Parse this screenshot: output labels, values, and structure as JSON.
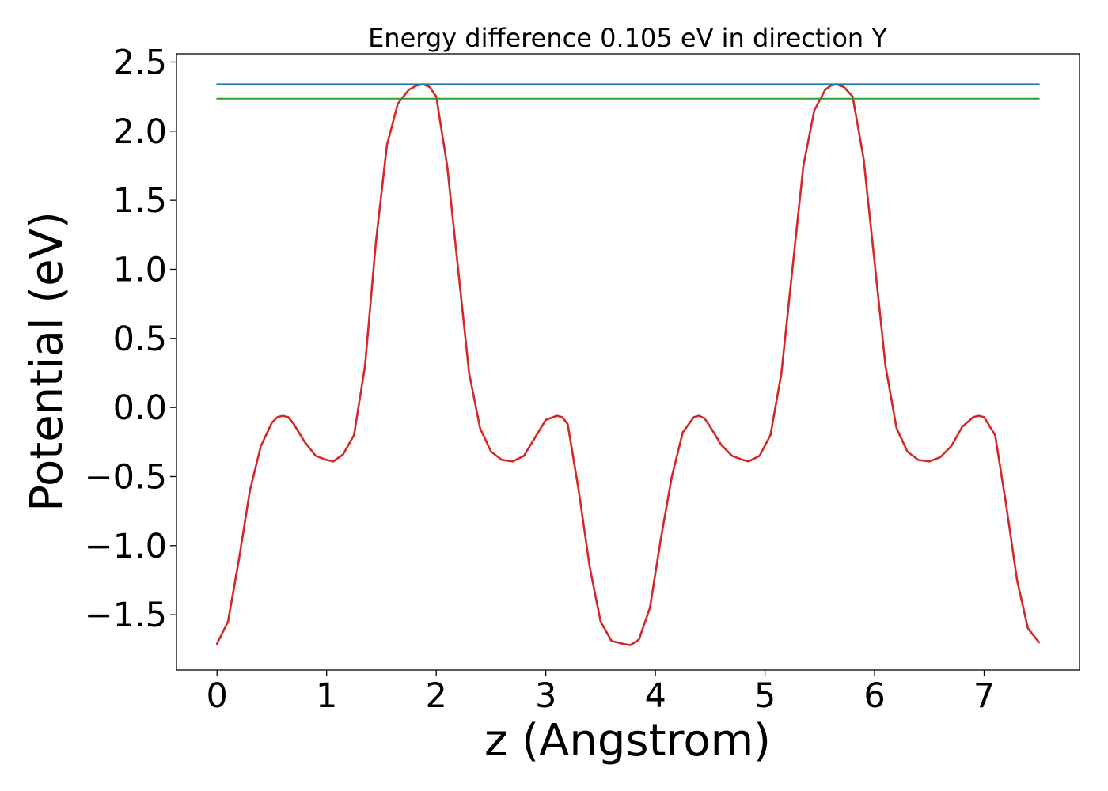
{
  "chart_data": {
    "type": "line",
    "title": "Energy difference 0.105 eV in direction Y",
    "xlabel": "z (Angstrom)",
    "ylabel": "Potential (eV)",
    "xlim": [
      -0.37,
      7.87
    ],
    "ylim": [
      -1.9,
      2.56
    ],
    "x_ticks": [
      0,
      1,
      2,
      3,
      4,
      5,
      6,
      7
    ],
    "x_tick_labels": [
      "0",
      "1",
      "2",
      "3",
      "4",
      "5",
      "6",
      "7"
    ],
    "y_ticks": [
      -1.5,
      -1.0,
      -0.5,
      0.0,
      0.5,
      1.0,
      1.5,
      2.0,
      2.5
    ],
    "y_tick_labels": [
      "−1.5",
      "−1.0",
      "−0.5",
      "0.0",
      "0.5",
      "1.0",
      "1.5",
      "2.0",
      "2.5"
    ],
    "grid": false,
    "colors": {
      "potential": "#d62728",
      "barrier_max": "#1f77b4",
      "barrier_min": "#2ca02c"
    },
    "series": [
      {
        "x": [
          0.0,
          0.1,
          0.2,
          0.3,
          0.4,
          0.5,
          0.55,
          0.6,
          0.65,
          0.7,
          0.8,
          0.9,
          1.0,
          1.06,
          1.15,
          1.25,
          1.35,
          1.45,
          1.55,
          1.65,
          1.75,
          1.82,
          1.88,
          1.94,
          2.0,
          2.1,
          2.2,
          2.3,
          2.4,
          2.5,
          2.6,
          2.7,
          2.8,
          2.9,
          3.0,
          3.1,
          3.15,
          3.2,
          3.3,
          3.4,
          3.5,
          3.6,
          3.7,
          3.77,
          3.85,
          3.95,
          4.05,
          4.15,
          4.25,
          4.35,
          4.4,
          4.45,
          4.5,
          4.6,
          4.7,
          4.8,
          4.85,
          4.95,
          5.05,
          5.15,
          5.25,
          5.35,
          5.45,
          5.55,
          5.6,
          5.65,
          5.72,
          5.8,
          5.9,
          6.0,
          6.1,
          6.2,
          6.3,
          6.4,
          6.5,
          6.6,
          6.7,
          6.8,
          6.9,
          6.95,
          7.0,
          7.1,
          7.2,
          7.3,
          7.4,
          7.5
        ],
        "y": [
          -1.71,
          -1.55,
          -1.1,
          -0.6,
          -0.28,
          -0.11,
          -0.07,
          -0.06,
          -0.07,
          -0.12,
          -0.25,
          -0.35,
          -0.38,
          -0.39,
          -0.34,
          -0.2,
          0.3,
          1.2,
          1.9,
          2.2,
          2.3,
          2.33,
          2.34,
          2.32,
          2.25,
          1.75,
          1.0,
          0.25,
          -0.15,
          -0.32,
          -0.38,
          -0.39,
          -0.35,
          -0.22,
          -0.09,
          -0.06,
          -0.07,
          -0.12,
          -0.6,
          -1.15,
          -1.55,
          -1.69,
          -1.71,
          -1.72,
          -1.68,
          -1.45,
          -0.95,
          -0.5,
          -0.18,
          -0.07,
          -0.06,
          -0.08,
          -0.14,
          -0.27,
          -0.35,
          -0.38,
          -0.39,
          -0.35,
          -0.2,
          0.25,
          1.0,
          1.75,
          2.15,
          2.3,
          2.33,
          2.34,
          2.32,
          2.25,
          1.8,
          1.05,
          0.3,
          -0.15,
          -0.32,
          -0.38,
          -0.39,
          -0.36,
          -0.28,
          -0.14,
          -0.07,
          -0.06,
          -0.07,
          -0.2,
          -0.7,
          -1.25,
          -1.6,
          -1.7
        ]
      },
      {
        "x": [
          0.0,
          7.5
        ],
        "y": [
          2.34,
          2.34
        ]
      },
      {
        "x": [
          0.0,
          7.5
        ],
        "y": [
          2.235,
          2.235
        ]
      }
    ]
  }
}
